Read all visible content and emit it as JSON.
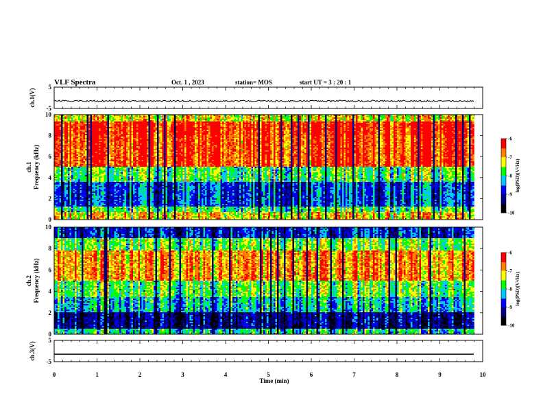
{
  "header": {
    "title": "VLF Spectra",
    "date": "Oct. 1 , 2023",
    "station": "station= MOS",
    "start_time": "start UT =  3 : 20 : 1"
  },
  "chart_data": [
    {
      "type": "line",
      "name": "ch1-waveform",
      "ylabel": "ch.1(V)",
      "ylim": [
        -5,
        5
      ],
      "y_ticks": [
        "5",
        "-5"
      ],
      "xlim": [
        0,
        10
      ],
      "x_extent_min": 9.8,
      "level": -1.5
    },
    {
      "type": "heatmap",
      "name": "ch1-spectrogram",
      "ylabel": "ch.1\nFrequency (kHz)",
      "ylim": [
        0,
        10
      ],
      "y_ticks": [
        "0",
        "2",
        "4",
        "6",
        "8",
        "10"
      ],
      "xlim": [
        0,
        10
      ],
      "x_extent_min": 9.8,
      "colorbar": {
        "label": "log(PSD)(V²/Hz)",
        "range": [
          -10,
          -6
        ],
        "ticks": [
          "-6",
          "-7",
          "-8",
          "-9",
          "-10"
        ]
      }
    },
    {
      "type": "heatmap",
      "name": "ch2-spectrogram",
      "ylabel": "ch.2\nFrequency (kHz)",
      "ylim": [
        0,
        10
      ],
      "y_ticks": [
        "0",
        "2",
        "4",
        "6",
        "8",
        "10"
      ],
      "xlim": [
        0,
        10
      ],
      "x_extent_min": 9.8,
      "colorbar": {
        "label": "log(PSD)(V²/Hz)",
        "range": [
          -10,
          -6
        ],
        "ticks": [
          "-6",
          "-7",
          "-8",
          "-9",
          "-10"
        ]
      }
    },
    {
      "type": "line",
      "name": "ch3-waveform",
      "ylabel": "ch.3(V)",
      "ylim": [
        -5,
        5
      ],
      "y_ticks": [
        "5",
        "-5"
      ],
      "xlim": [
        0,
        10
      ],
      "x_extent_min": 9.8,
      "level": -1.5
    }
  ],
  "x_axis": {
    "label": "Time (min)",
    "ticks": [
      "0",
      "1",
      "2",
      "3",
      "4",
      "5",
      "6",
      "7",
      "8",
      "9",
      "10"
    ]
  },
  "colors": {
    "frame": "#000000",
    "background": "#ffffff",
    "colormap": [
      "#000000",
      "#000080",
      "#0000ff",
      "#00c8ff",
      "#00ff00",
      "#ffff00",
      "#ff8000",
      "#ff0000",
      "#ffffff"
    ]
  }
}
